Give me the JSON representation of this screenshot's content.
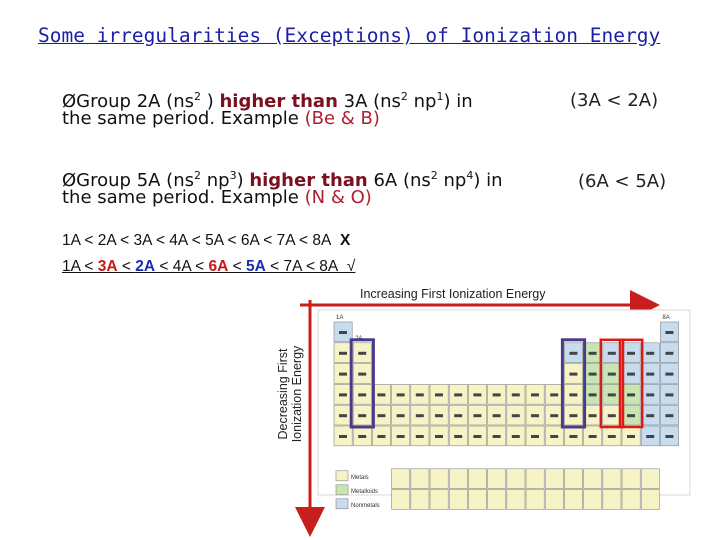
{
  "title": "Some irregularities (Exceptions) of Ionization Energy",
  "bullet1": {
    "arrow": "Ø",
    "pre": "Group 2A (ns",
    "sup1": "2",
    "mid1": " ) ",
    "highlight": "higher than",
    "mid2": " 3A (ns",
    "sup2": "2",
    "mid3": " np",
    "sup3": "1",
    "post": ") in",
    "line2_pre": "the same period. Example ",
    "example": "(Be & B)",
    "side_note": "(3A < 2A)"
  },
  "bullet2": {
    "arrow": "Ø",
    "pre": "Group 5A (ns",
    "sup1": "2",
    "mid1": " np",
    "sup2": "3",
    "mid2": ") ",
    "highlight": "higher than",
    "mid3": " 6A (ns",
    "sup3": "2",
    "mid4": " np",
    "sup4": "4",
    "post": ") in",
    "line2_pre": "the same period. Example ",
    "example": "(N & O)",
    "side_note": "(6A < 5A)"
  },
  "sequence_wrong": {
    "text": "1A < 2A < 3A < 4A < 5A < 6A < 7A < 8A",
    "mark": "X"
  },
  "sequence_right": {
    "p1": "1A < ",
    "r1": "3A",
    "p2": " < ",
    "b1": "2A",
    "p3": " < 4A < ",
    "r2": "6A",
    "p4": " < ",
    "b2": "5A",
    "p5": " < 7A < 8A",
    "mark": "√"
  },
  "captions": {
    "horizontal": "Increasing First Ionization Energy",
    "vertical_line1": "Decreasing First",
    "vertical_line2": "Ionization Energy"
  },
  "periodic_table": {
    "legend": [
      "Metals",
      "Metalloids",
      "Nonmetals"
    ],
    "top_row_labels": [
      "1A",
      "2A",
      "8A"
    ],
    "colors": {
      "metal": "#f6f4c6",
      "metalloid": "#c8e6b3",
      "nonmetal": "#c7dcef",
      "red_box": "#e01818",
      "purple_box": "#4a3a8a",
      "arrow": "#c81e1e"
    }
  },
  "colors": {
    "title": "#1b1fa8",
    "highlight": "#7a1020",
    "example": "#b01f2f",
    "arrow_red": "#c81e1e"
  }
}
